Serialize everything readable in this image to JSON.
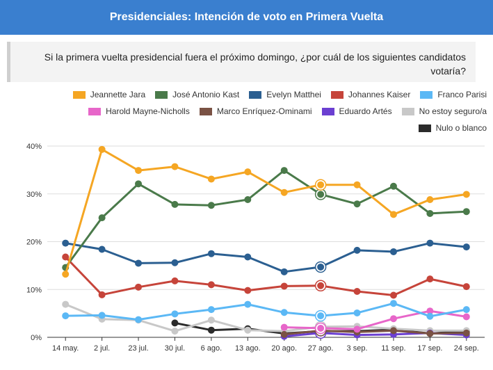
{
  "header": {
    "title": "Presidenciales: Intención de voto en Primera Vuelta"
  },
  "question": {
    "text": "Si la primera vuelta presidencial fuera el próximo domingo, ¿por cuál de los siguientes candidatos votaría?"
  },
  "chart_data": {
    "type": "line",
    "title": "",
    "xlabel": "",
    "ylabel": "",
    "ylim": [
      0,
      40
    ],
    "yticks": [
      "0%",
      "10%",
      "20%",
      "30%",
      "40%"
    ],
    "ytick_values": [
      0,
      10,
      20,
      30,
      40
    ],
    "grid": true,
    "legend_position": "top-right",
    "x": [
      "14 may.",
      "2 jul.",
      "23 jul.",
      "30 jul.",
      "6 ago.",
      "13 ago.",
      "20 ago.",
      "27 ago.",
      "3 sep.",
      "11 sep.",
      "17 sep.",
      "24 sep."
    ],
    "highlight_index": 7,
    "series": [
      {
        "name": "Jeannette Jara",
        "color": "#f5a623",
        "values": [
          13.2,
          39.3,
          34.9,
          35.7,
          33.1,
          34.6,
          30.3,
          31.9,
          31.9,
          25.7,
          28.8,
          29.9
        ]
      },
      {
        "name": "José Antonio Kast",
        "color": "#4a7a4a",
        "values": [
          14.6,
          25.0,
          32.1,
          27.8,
          27.6,
          28.8,
          34.9,
          29.9,
          27.9,
          31.6,
          25.9,
          26.3
        ]
      },
      {
        "name": "Evelyn Matthei",
        "color": "#2b5f91",
        "values": [
          19.7,
          18.4,
          15.5,
          15.6,
          17.5,
          16.8,
          13.7,
          14.7,
          18.2,
          17.9,
          19.7,
          18.9
        ]
      },
      {
        "name": "Johannes Kaiser",
        "color": "#c6443a",
        "values": [
          16.8,
          8.9,
          10.5,
          11.8,
          11.0,
          9.8,
          10.7,
          10.8,
          9.6,
          8.8,
          12.2,
          10.6
        ]
      },
      {
        "name": "Franco Parisi",
        "color": "#5bb8f5",
        "values": [
          4.5,
          4.6,
          3.7,
          4.9,
          5.8,
          6.9,
          5.2,
          4.5,
          5.1,
          7.1,
          4.4,
          5.8
        ]
      },
      {
        "name": "Harold Mayne-Nicholls",
        "color": "#e766c9",
        "values": [
          null,
          null,
          null,
          null,
          null,
          null,
          2.1,
          1.9,
          1.7,
          3.9,
          5.5,
          4.3
        ]
      },
      {
        "name": "Marco Enríquez-Ominami",
        "color": "#7a5244",
        "values": [
          null,
          null,
          null,
          null,
          null,
          null,
          0.6,
          1.4,
          1.1,
          1.4,
          0.8,
          0.9
        ]
      },
      {
        "name": "Eduardo Artés",
        "color": "#6b3fd1",
        "values": [
          null,
          null,
          null,
          null,
          null,
          null,
          0.2,
          0.9,
          0.5,
          0.6,
          0.9,
          0.5
        ]
      },
      {
        "name": "No estoy seguro/a",
        "color": "#c8c8c8",
        "values": [
          6.9,
          3.8,
          3.6,
          1.3,
          3.6,
          1.5,
          1.3,
          2.2,
          2.3,
          1.8,
          1.4,
          1.4
        ]
      },
      {
        "name": "Nulo o blanco",
        "color": "#2b2b2b",
        "values": [
          null,
          null,
          null,
          3.0,
          1.5,
          1.8,
          0.8,
          1.3,
          1.3,
          1.6,
          0.8,
          1.3
        ]
      }
    ]
  }
}
